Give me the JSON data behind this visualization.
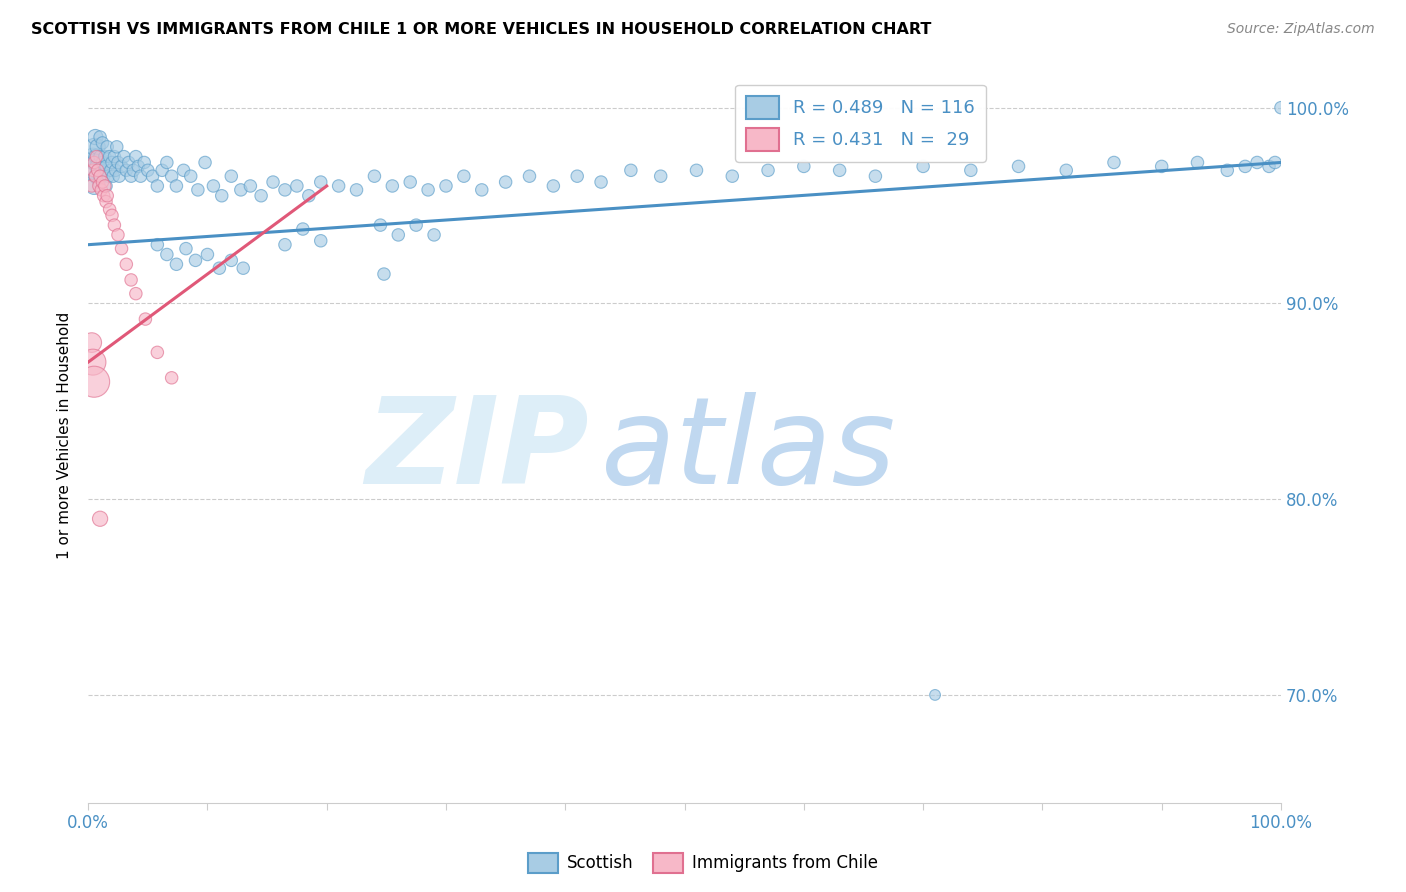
{
  "title": "SCOTTISH VS IMMIGRANTS FROM CHILE 1 OR MORE VEHICLES IN HOUSEHOLD CORRELATION CHART",
  "source": "Source: ZipAtlas.com",
  "ylabel": "1 or more Vehicles in Household",
  "ytick_labels": [
    "70.0%",
    "80.0%",
    "90.0%",
    "100.0%"
  ],
  "ytick_values": [
    0.7,
    0.8,
    0.9,
    1.0
  ],
  "xlim": [
    0.0,
    1.0
  ],
  "ylim": [
    0.645,
    1.02
  ],
  "legend_label_blue": "Scottish",
  "legend_label_pink": "Immigrants from Chile",
  "blue_color": "#a8cce4",
  "blue_edge_color": "#5b9dc9",
  "pink_color": "#f7b8c8",
  "pink_edge_color": "#e07090",
  "trendline_blue": "#4a90c4",
  "trendline_pink": "#e05878",
  "watermark_zip_color": "#ddeef8",
  "watermark_atlas_color": "#c0d8f0",
  "blue_r": 0.489,
  "blue_n": 116,
  "pink_r": 0.431,
  "pink_n": 29,
  "blue_trend_x0": 0.0,
  "blue_trend_y0": 0.93,
  "blue_trend_x1": 1.0,
  "blue_trend_y1": 0.972,
  "pink_trend_x0": 0.0,
  "pink_trend_y0": 0.87,
  "pink_trend_x1": 0.2,
  "pink_trend_y1": 0.96,
  "blue_scatter_x": [
    0.003,
    0.004,
    0.005,
    0.005,
    0.006,
    0.006,
    0.007,
    0.007,
    0.008,
    0.008,
    0.009,
    0.01,
    0.01,
    0.011,
    0.012,
    0.012,
    0.013,
    0.014,
    0.015,
    0.015,
    0.016,
    0.017,
    0.018,
    0.019,
    0.02,
    0.021,
    0.022,
    0.023,
    0.024,
    0.025,
    0.026,
    0.028,
    0.03,
    0.032,
    0.034,
    0.036,
    0.038,
    0.04,
    0.042,
    0.044,
    0.047,
    0.05,
    0.054,
    0.058,
    0.062,
    0.066,
    0.07,
    0.074,
    0.08,
    0.086,
    0.092,
    0.098,
    0.105,
    0.112,
    0.12,
    0.128,
    0.136,
    0.145,
    0.155,
    0.165,
    0.175,
    0.185,
    0.195,
    0.21,
    0.225,
    0.24,
    0.255,
    0.27,
    0.285,
    0.3,
    0.315,
    0.33,
    0.35,
    0.37,
    0.39,
    0.41,
    0.43,
    0.455,
    0.48,
    0.51,
    0.54,
    0.57,
    0.6,
    0.63,
    0.66,
    0.7,
    0.74,
    0.78,
    0.82,
    0.86,
    0.9,
    0.93,
    0.955,
    0.97,
    0.98,
    0.99,
    0.995,
    1.0,
    0.245,
    0.26,
    0.275,
    0.29,
    0.165,
    0.18,
    0.195,
    0.058,
    0.066,
    0.074,
    0.082,
    0.09,
    0.1,
    0.11,
    0.12,
    0.13,
    0.248,
    0.71
  ],
  "blue_scatter_y": [
    0.968,
    0.975,
    0.96,
    0.98,
    0.972,
    0.985,
    0.965,
    0.975,
    0.97,
    0.98,
    0.962,
    0.975,
    0.985,
    0.968,
    0.972,
    0.982,
    0.965,
    0.975,
    0.96,
    0.97,
    0.98,
    0.965,
    0.975,
    0.968,
    0.972,
    0.965,
    0.975,
    0.968,
    0.98,
    0.972,
    0.965,
    0.97,
    0.975,
    0.968,
    0.972,
    0.965,
    0.968,
    0.975,
    0.97,
    0.965,
    0.972,
    0.968,
    0.965,
    0.96,
    0.968,
    0.972,
    0.965,
    0.96,
    0.968,
    0.965,
    0.958,
    0.972,
    0.96,
    0.955,
    0.965,
    0.958,
    0.96,
    0.955,
    0.962,
    0.958,
    0.96,
    0.955,
    0.962,
    0.96,
    0.958,
    0.965,
    0.96,
    0.962,
    0.958,
    0.96,
    0.965,
    0.958,
    0.962,
    0.965,
    0.96,
    0.965,
    0.962,
    0.968,
    0.965,
    0.968,
    0.965,
    0.968,
    0.97,
    0.968,
    0.965,
    0.97,
    0.968,
    0.97,
    0.968,
    0.972,
    0.97,
    0.972,
    0.968,
    0.97,
    0.972,
    0.97,
    0.972,
    1.0,
    0.94,
    0.935,
    0.94,
    0.935,
    0.93,
    0.938,
    0.932,
    0.93,
    0.925,
    0.92,
    0.928,
    0.922,
    0.925,
    0.918,
    0.922,
    0.918,
    0.915,
    0.7
  ],
  "pink_scatter_x": [
    0.003,
    0.004,
    0.005,
    0.006,
    0.007,
    0.008,
    0.009,
    0.01,
    0.011,
    0.012,
    0.013,
    0.014,
    0.015,
    0.016,
    0.018,
    0.02,
    0.022,
    0.025,
    0.028,
    0.032,
    0.036,
    0.04,
    0.048,
    0.058,
    0.07,
    0.003,
    0.004,
    0.005,
    0.01
  ],
  "pink_scatter_y": [
    0.96,
    0.968,
    0.972,
    0.965,
    0.975,
    0.968,
    0.96,
    0.965,
    0.958,
    0.962,
    0.955,
    0.96,
    0.952,
    0.955,
    0.948,
    0.945,
    0.94,
    0.935,
    0.928,
    0.92,
    0.912,
    0.905,
    0.892,
    0.875,
    0.862,
    0.88,
    0.87,
    0.86,
    0.79
  ],
  "pink_bubble_sizes": [
    80,
    80,
    80,
    80,
    80,
    80,
    80,
    80,
    80,
    80,
    80,
    80,
    80,
    80,
    80,
    80,
    80,
    80,
    80,
    80,
    80,
    80,
    80,
    80,
    80,
    200,
    350,
    500,
    120
  ]
}
